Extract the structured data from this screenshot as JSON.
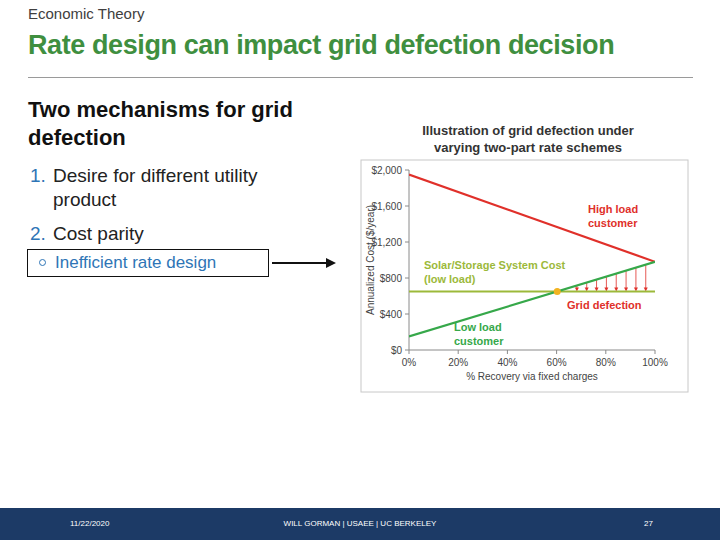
{
  "slide": {
    "header": "Economic Theory",
    "title": "Rate design can impact grid defection decision",
    "heading": "Two mechanisms for grid defection",
    "items": [
      {
        "number": "1.",
        "text": "Desire for different utility product"
      },
      {
        "number": "2.",
        "text": "Cost parity"
      }
    ],
    "sub_item": "Inefficient rate design",
    "footer": {
      "date": "11/22/2020",
      "author": "WILL GORMAN | USAEE | UC BERKELEY",
      "page": "27"
    }
  },
  "chart_data": {
    "type": "line",
    "title": "Illustration of grid defection under varying two-part rate schemes",
    "x_label": "% Recovery via fixed charges",
    "y_label": "Annualized Cost ($/year)",
    "x": [
      0,
      100
    ],
    "xlim": [
      0,
      100
    ],
    "xticks": [
      {
        "value": 0,
        "label": "0%"
      },
      {
        "value": 20,
        "label": "20%"
      },
      {
        "value": 40,
        "label": "40%"
      },
      {
        "value": 60,
        "label": "60%"
      },
      {
        "value": 80,
        "label": "80%"
      },
      {
        "value": 100,
        "label": "100%"
      }
    ],
    "ylim": [
      0,
      2000
    ],
    "yticks": [
      {
        "value": 0,
        "label": "$0"
      },
      {
        "value": 400,
        "label": "$400"
      },
      {
        "value": 800,
        "label": "$800"
      },
      {
        "value": 1200,
        "label": "$1,200"
      },
      {
        "value": 1600,
        "label": "$1,600"
      },
      {
        "value": 2000,
        "label": "$2,000"
      }
    ],
    "grid": false,
    "series": [
      {
        "name": "High load customer",
        "color": "#e0302a",
        "values": [
          1950,
          980
        ]
      },
      {
        "name": "Solar/Storage System Cost (low load)",
        "color": "#9cb93a",
        "values": [
          650,
          650
        ]
      },
      {
        "name": "Low load customer",
        "color": "#36a84a",
        "values": [
          150,
          980
        ]
      }
    ],
    "annotations": [
      {
        "text": "Grid defection",
        "color": "#e0302a"
      }
    ]
  }
}
